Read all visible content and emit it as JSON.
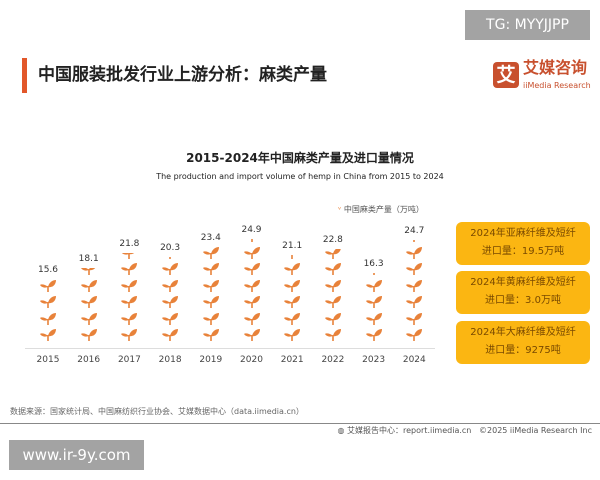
{
  "watermark_top": "TG: MYYJJPP",
  "watermark_bottom": "www.ir-9y.com",
  "header": {
    "title": "中国服装批发行业上游分析：麻类产量",
    "logo_mark": "艾",
    "logo_cn": "艾媒咨询",
    "logo_en": "iiMedia Research"
  },
  "chart_data": {
    "type": "pictogram-bar",
    "title": "2015-2024年中国麻类产量及进口量情况",
    "subtitle": "The production and import volume of hemp in China from 2015 to 2024",
    "legend": "中国麻类产量（万吨）",
    "categories": [
      "2015",
      "2016",
      "2017",
      "2018",
      "2019",
      "2020",
      "2021",
      "2022",
      "2023",
      "2024"
    ],
    "values": [
      15.6,
      18.1,
      21.8,
      20.3,
      23.4,
      24.9,
      21.1,
      22.8,
      16.3,
      24.7
    ],
    "value_labels": [
      "15.6",
      "18.1",
      "21.8",
      "20.3",
      "23.4",
      "24.9",
      "21.1",
      "22.8",
      "16.3",
      "24.7"
    ],
    "color": "#e8823a",
    "icon": "sprout-icon"
  },
  "callouts": [
    {
      "line1": "2024年亚麻纤维及短纤",
      "line2": "进口量：19.5万吨"
    },
    {
      "line1": "2024年黄麻纤维及短纤",
      "line2": "进口量：3.0万吨"
    },
    {
      "line1": "2024年大麻纤维及短纤",
      "line2": "进口量：9275吨"
    }
  ],
  "callout_color": "#fbb612",
  "footer": {
    "source": "数据来源：国家统计局、中国麻纺织行业协会、艾媒数据中心（data.iimedia.cn）",
    "report": "艾媒报告中心：report.iimedia.cn",
    "copyright": "©2025 iiMedia Research Inc"
  }
}
